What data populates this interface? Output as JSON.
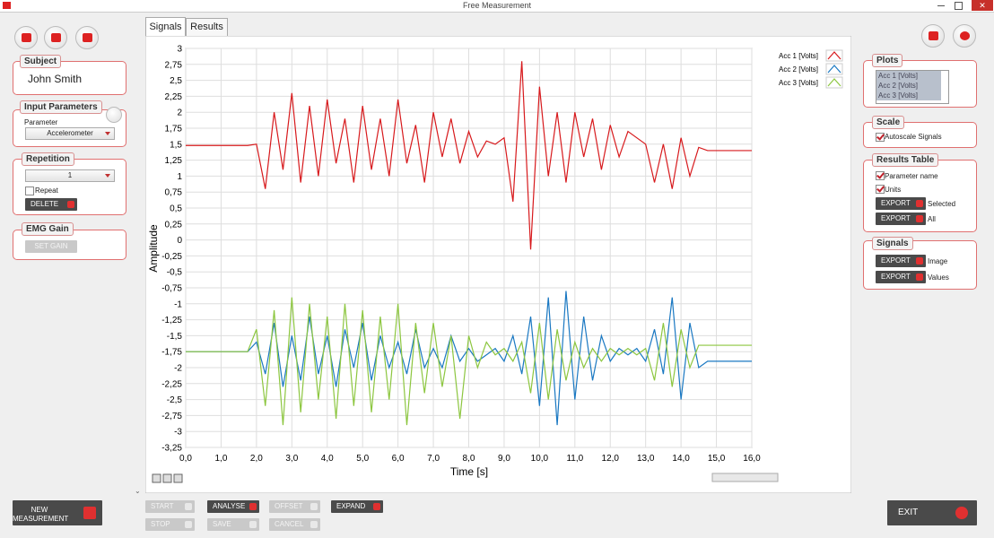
{
  "window": {
    "title": "Free Measurement"
  },
  "left": {
    "subject": {
      "title": "Subject",
      "name": "John Smith"
    },
    "input_parameters": {
      "title": "Input Parameters",
      "parameter_label": "Parameter",
      "parameter_value": "Accelerometer"
    },
    "repetition": {
      "title": "Repetition",
      "value": "1",
      "repeat_label": "Repeat",
      "delete_button": "DELETE"
    },
    "emg_gain": {
      "title": "EMG Gain",
      "button": "SET GAIN"
    }
  },
  "tabs": [
    "Signals",
    "Results"
  ],
  "chart_data": {
    "type": "line",
    "xlabel": "Time [s]",
    "ylabel": "Amplitude",
    "grid": true,
    "legend": "top-right",
    "xlim": [
      0,
      16
    ],
    "ylim": [
      -3.25,
      3
    ],
    "xticks": [
      {
        "value": 0,
        "label": "0,0"
      },
      {
        "value": 1,
        "label": "1,0"
      },
      {
        "value": 2,
        "label": "2,0"
      },
      {
        "value": 3,
        "label": "3,0"
      },
      {
        "value": 4,
        "label": "4,0"
      },
      {
        "value": 5,
        "label": "5,0"
      },
      {
        "value": 6,
        "label": "6,0"
      },
      {
        "value": 7,
        "label": "7,0"
      },
      {
        "value": 8,
        "label": "8,0"
      },
      {
        "value": 9,
        "label": "9,0"
      },
      {
        "value": 10,
        "label": "10,0"
      },
      {
        "value": 11,
        "label": "11,0"
      },
      {
        "value": 12,
        "label": "12,0"
      },
      {
        "value": 13,
        "label": "13,0"
      },
      {
        "value": 14,
        "label": "14,0"
      },
      {
        "value": 15,
        "label": "15,0"
      },
      {
        "value": 16,
        "label": "16,0"
      }
    ],
    "yticks": [
      3,
      {
        "value": 2.75,
        "label": "2,75"
      },
      {
        "value": 2.5,
        "label": "2,5"
      },
      {
        "value": 2.25,
        "label": "2,25"
      },
      2,
      {
        "value": 1.75,
        "label": "1,75"
      },
      {
        "value": 1.5,
        "label": "1,5"
      },
      {
        "value": 1.25,
        "label": "1,25"
      },
      1,
      {
        "value": 0.75,
        "label": "0,75"
      },
      {
        "value": 0.5,
        "label": "0,5"
      },
      {
        "value": 0.25,
        "label": "0,25"
      },
      0,
      {
        "value": -0.25,
        "label": "-0,25"
      },
      {
        "value": -0.5,
        "label": "-0,5"
      },
      {
        "value": -0.75,
        "label": "-0,75"
      },
      -1,
      {
        "value": -1.25,
        "label": "-1,25"
      },
      {
        "value": -1.5,
        "label": "-1,5"
      },
      {
        "value": -1.75,
        "label": "-1,75"
      },
      -2,
      {
        "value": -2.25,
        "label": "-2,25"
      },
      {
        "value": -2.5,
        "label": "-2,5"
      },
      {
        "value": -2.75,
        "label": "-2,75"
      },
      -3,
      {
        "value": -3.25,
        "label": "-3,25"
      }
    ],
    "x": [
      0,
      0.25,
      0.5,
      0.75,
      1,
      1.25,
      1.5,
      1.75,
      2,
      2.25,
      2.5,
      2.75,
      3,
      3.25,
      3.5,
      3.75,
      4,
      4.25,
      4.5,
      4.75,
      5,
      5.25,
      5.5,
      5.75,
      6,
      6.25,
      6.5,
      6.75,
      7,
      7.25,
      7.5,
      7.75,
      8,
      8.25,
      8.5,
      8.75,
      9,
      9.25,
      9.5,
      9.75,
      10,
      10.25,
      10.5,
      10.75,
      11,
      11.25,
      11.5,
      11.75,
      12,
      12.25,
      12.5,
      12.75,
      13,
      13.25,
      13.5,
      13.75,
      14,
      14.25,
      14.5,
      14.75,
      15,
      15.25,
      15.5,
      15.75,
      16
    ],
    "series": [
      {
        "name": "Acc 1 [Volts]",
        "color": "#d7191c",
        "values": [
          1.48,
          1.48,
          1.48,
          1.48,
          1.48,
          1.48,
          1.48,
          1.48,
          1.5,
          0.8,
          2.0,
          1.1,
          2.3,
          0.9,
          2.1,
          1.0,
          2.2,
          1.2,
          1.9,
          0.9,
          2.1,
          1.1,
          1.9,
          1.0,
          2.2,
          1.2,
          1.8,
          0.9,
          2.0,
          1.3,
          1.9,
          1.2,
          1.7,
          1.3,
          1.55,
          1.5,
          1.6,
          0.6,
          2.8,
          -0.15,
          2.4,
          1.0,
          2.0,
          0.9,
          2.0,
          1.3,
          1.9,
          1.1,
          1.8,
          1.3,
          1.7,
          1.6,
          1.5,
          0.9,
          1.5,
          0.8,
          1.6,
          1.0,
          1.45,
          1.4,
          1.4,
          1.4,
          1.4,
          1.4,
          1.4
        ]
      },
      {
        "name": "Acc 2 [Volts]",
        "color": "#1a78c2",
        "values": [
          -1.75,
          -1.75,
          -1.75,
          -1.75,
          -1.75,
          -1.75,
          -1.75,
          -1.75,
          -1.6,
          -2.1,
          -1.3,
          -2.3,
          -1.5,
          -2.2,
          -1.2,
          -2.1,
          -1.5,
          -2.3,
          -1.4,
          -2.0,
          -1.3,
          -2.2,
          -1.5,
          -2.0,
          -1.6,
          -2.1,
          -1.4,
          -2.0,
          -1.7,
          -2.0,
          -1.5,
          -1.9,
          -1.7,
          -1.9,
          -1.8,
          -1.7,
          -1.9,
          -1.5,
          -2.1,
          -1.2,
          -2.6,
          -0.9,
          -2.9,
          -0.8,
          -2.5,
          -1.2,
          -2.2,
          -1.5,
          -1.9,
          -1.7,
          -1.8,
          -1.7,
          -1.9,
          -1.4,
          -2.1,
          -0.9,
          -2.5,
          -1.3,
          -2.0,
          -1.9,
          -1.9,
          -1.9,
          -1.9,
          -1.9,
          -1.9
        ]
      },
      {
        "name": "Acc 3 [Volts]",
        "color": "#8cc63f",
        "values": [
          -1.75,
          -1.75,
          -1.75,
          -1.75,
          -1.75,
          -1.75,
          -1.75,
          -1.75,
          -1.4,
          -2.6,
          -1.1,
          -2.9,
          -0.9,
          -2.7,
          -1.0,
          -2.5,
          -1.2,
          -2.8,
          -1.0,
          -2.6,
          -1.1,
          -2.7,
          -1.2,
          -2.5,
          -1.0,
          -2.9,
          -1.3,
          -2.4,
          -1.3,
          -2.3,
          -1.5,
          -2.8,
          -1.5,
          -2.0,
          -1.6,
          -1.8,
          -1.7,
          -1.9,
          -1.6,
          -2.4,
          -1.3,
          -2.5,
          -1.4,
          -2.2,
          -1.6,
          -2.0,
          -1.7,
          -1.9,
          -1.7,
          -1.8,
          -1.7,
          -1.8,
          -1.7,
          -2.2,
          -1.3,
          -2.3,
          -1.4,
          -2.0,
          -1.65,
          -1.65,
          -1.65,
          -1.65,
          -1.65,
          -1.65,
          -1.65
        ]
      }
    ]
  },
  "right": {
    "plots": {
      "title": "Plots",
      "items": [
        "Acc 1 [Volts]",
        "Acc 2 [Volts]",
        "Acc 3 [Volts]"
      ]
    },
    "scale": {
      "title": "Scale",
      "autoscale": "Autoscale Signals"
    },
    "results_table": {
      "title": "Results Table",
      "parameter_name": "Parameter name",
      "units": "Units",
      "exports": [
        {
          "button": "EXPORT",
          "caption": "Selected"
        },
        {
          "button": "EXPORT",
          "caption": "All"
        }
      ]
    },
    "signals": {
      "title": "Signals",
      "exports": [
        {
          "button": "EXPORT",
          "caption": "Image"
        },
        {
          "button": "EXPORT",
          "caption": "Values"
        }
      ]
    }
  },
  "bottom": {
    "new_measurement": "NEW MEASUREMENT",
    "start": "START",
    "analyse": "ANALYSE",
    "offset": "OFFSET",
    "expand": "EXPAND",
    "stop": "STOP",
    "save": "SAVE",
    "cancel": "CANCEL",
    "exit": "EXIT"
  }
}
